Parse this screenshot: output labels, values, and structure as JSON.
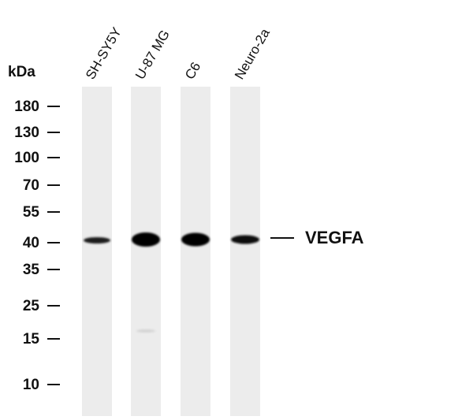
{
  "axis_label": "kDa",
  "markers": [
    180,
    130,
    100,
    70,
    55,
    40,
    35,
    25,
    15,
    10
  ],
  "lanes": [
    "SH-SY5Y",
    "U-87 MG",
    "C6",
    "Neuro-2a"
  ],
  "target": "VEGFA"
}
